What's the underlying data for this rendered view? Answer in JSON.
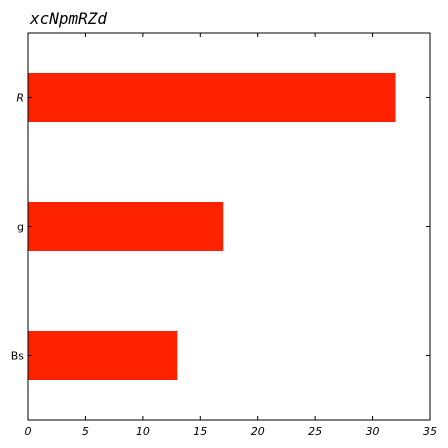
{
  "chart_data": {
    "type": "bar",
    "orientation": "horizontal",
    "title": "xcNpmRZd",
    "categories": [
      "Bs",
      "g",
      "R"
    ],
    "values": [
      13,
      17,
      32
    ],
    "xlabel": "",
    "ylabel": "",
    "xlim": [
      0,
      35
    ],
    "xticks": [
      0,
      5,
      10,
      15,
      20,
      25,
      30,
      35
    ],
    "grid": false,
    "bar_color": "#ff2200"
  }
}
